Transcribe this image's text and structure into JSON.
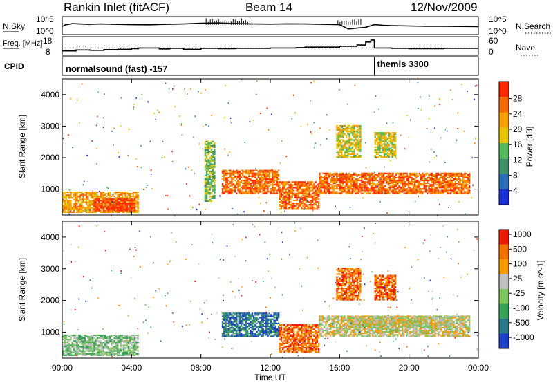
{
  "header": {
    "station": "Rankin Inlet (fitACF)",
    "beam": "Beam 14",
    "date": "12/Nov/2009"
  },
  "colors": {
    "power_scale": [
      "#1b2fd6",
      "#2a6fb5",
      "#3f8f6a",
      "#52b85a",
      "#e6c400",
      "#f5a000",
      "#f56a00",
      "#ff2a00"
    ],
    "velocity_scale": [
      "#1e3fc8",
      "#2a7a8a",
      "#3aa35a",
      "#7cc35a",
      "#bfbfbf",
      "#f59a00",
      "#f07000",
      "#f01a00"
    ],
    "ground_scatter": "#c8c8c8"
  },
  "chart_data": [
    {
      "type": "line",
      "panel": "noise",
      "left_label": "N.Sky",
      "right_label": "N.Search",
      "left_ticks": [
        "10^5",
        "10^0"
      ],
      "right_ticks": [
        "10^5",
        "10^0"
      ],
      "series": [
        {
          "x": [
            0.0,
            0.2,
            0.6,
            1.0,
            1.6,
            2.2,
            3.0,
            4.0,
            5.0,
            6.0,
            7.0,
            8.0,
            9.0,
            10.0,
            11.0,
            12.0,
            13.0,
            14.0,
            15.0,
            16.0,
            16.5,
            17.0,
            17.5,
            18.0,
            18.5,
            19.0,
            20.0,
            21.0,
            22.0,
            23.0,
            24.0
          ],
          "y": [
            0.45,
            0.55,
            0.62,
            0.6,
            0.58,
            0.6,
            0.58,
            0.56,
            0.55,
            0.58,
            0.6,
            0.64,
            0.66,
            0.62,
            0.6,
            0.59,
            0.61,
            0.6,
            0.58,
            0.56,
            0.3,
            0.35,
            0.4,
            0.56,
            0.52,
            0.5,
            0.48,
            0.46,
            0.46,
            0.45,
            0.44
          ]
        }
      ]
    },
    {
      "type": "line",
      "panel": "frequency",
      "left_label": "Freq. [MHz]",
      "right_label": "Nave",
      "left_ticks": [
        "18",
        "8"
      ],
      "right_ticks": [
        "60",
        "0"
      ],
      "series": [
        {
          "name": "Freq.",
          "x": [
            0.0,
            0.8,
            1.6,
            2.4,
            3.2,
            4.0,
            4.4,
            5.6,
            6.2,
            7.0,
            8.0,
            9.0,
            10.0,
            12.0,
            13.5,
            14.0,
            16.0,
            17.0,
            17.5,
            17.8,
            18.0,
            19.0,
            20.0,
            22.0,
            24.0
          ],
          "y": [
            10.2,
            10.8,
            10.6,
            11.0,
            11.2,
            11.6,
            12.0,
            11.4,
            11.8,
            11.2,
            11.8,
            11.6,
            11.8,
            12.0,
            12.2,
            12.5,
            13.0,
            13.8,
            15.6,
            16.8,
            12.0,
            11.8,
            11.6,
            11.8,
            11.8
          ]
        }
      ],
      "reference_level": 12
    },
    {
      "type": "table",
      "panel": "cpid",
      "label": "CPID",
      "segments": [
        {
          "start": 0,
          "end": 18.0,
          "name": "normalsound (fast) -157"
        },
        {
          "start": 18.0,
          "end": 24,
          "name": "themis 3300"
        }
      ]
    },
    {
      "type": "heatmap",
      "panel": "power",
      "ylabel": "Slant Range [km]",
      "colorbar_label": "Power [dB]",
      "colorbar_ticks": [
        4,
        8,
        12,
        16,
        20,
        24,
        28
      ],
      "y_ticks": [
        1000,
        2000,
        3000,
        4000
      ],
      "ylim": [
        180,
        4500
      ],
      "patches": [
        {
          "t": [
            0.0,
            4.4
          ],
          "r": [
            250,
            900
          ],
          "level": 5
        },
        {
          "t": [
            1.8,
            4.2
          ],
          "r": [
            300,
            700
          ],
          "level": 7
        },
        {
          "t": [
            9.2,
            12.5
          ],
          "r": [
            850,
            1600
          ],
          "level": 6
        },
        {
          "t": [
            12.5,
            14.8
          ],
          "r": [
            350,
            1250
          ],
          "level": 6
        },
        {
          "t": [
            14.8,
            23.5
          ],
          "r": [
            850,
            1500
          ],
          "level": 6
        },
        {
          "t": [
            15.8,
            17.2
          ],
          "r": [
            2000,
            3000
          ],
          "level": 4
        },
        {
          "t": [
            18.0,
            19.2
          ],
          "r": [
            2000,
            2800
          ],
          "level": 4
        },
        {
          "t": [
            8.2,
            8.8
          ],
          "r": [
            600,
            2500
          ],
          "level": 3
        }
      ]
    },
    {
      "type": "heatmap",
      "panel": "velocity",
      "ylabel": "Slant Range [km]",
      "colorbar_label": "Velocity [m s^-1]",
      "colorbar_ticks": [
        1000,
        500,
        100,
        25,
        -25,
        -100,
        -500,
        -1000
      ],
      "y_ticks": [
        1000,
        2000,
        3000,
        4000
      ],
      "ylim": [
        180,
        4500
      ],
      "patches": [
        {
          "t": [
            0.0,
            4.4
          ],
          "r": [
            250,
            900
          ],
          "level": 3
        },
        {
          "t": [
            9.2,
            12.5
          ],
          "r": [
            850,
            1600
          ],
          "level": 1
        },
        {
          "t": [
            12.5,
            14.8
          ],
          "r": [
            350,
            1250
          ],
          "level": 6
        },
        {
          "t": [
            14.8,
            23.5
          ],
          "r": [
            850,
            1500
          ],
          "level": 4
        },
        {
          "t": [
            15.8,
            17.2
          ],
          "r": [
            2000,
            3000
          ],
          "level": 6
        },
        {
          "t": [
            18.0,
            19.2
          ],
          "r": [
            2000,
            2800
          ],
          "level": 6
        },
        {
          "t": [
            16.5,
            22.5
          ],
          "r": [
            1150,
            1500
          ],
          "level": 4
        }
      ]
    }
  ],
  "time_axis": {
    "xlabel": "Time UT",
    "ticks": [
      "00:00",
      "04:00",
      "08:00",
      "12:00",
      "16:00",
      "20:00",
      "00:00"
    ],
    "xlim": [
      0,
      24
    ]
  }
}
